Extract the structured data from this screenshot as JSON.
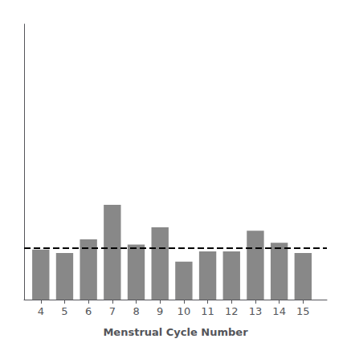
{
  "chart_data": {
    "type": "bar",
    "x": [
      4,
      5,
      6,
      7,
      8,
      9,
      10,
      11,
      12,
      13,
      14,
      15
    ],
    "values": [
      29,
      27,
      35,
      55,
      32,
      42,
      22,
      28,
      28,
      40,
      33,
      27
    ],
    "color": "#888888",
    "xlabel": "Menstrual Cycle Number",
    "xlim": [
      3.3,
      16.0
    ],
    "xticks": [
      4,
      5,
      6,
      7,
      8,
      9,
      10,
      11,
      12,
      13,
      14,
      15
    ],
    "ylim": [
      0,
      160
    ],
    "mean_line": {
      "value": 30,
      "color": "#000000",
      "line_style": "dashed"
    },
    "grid": false,
    "tick_labels": "x"
  }
}
